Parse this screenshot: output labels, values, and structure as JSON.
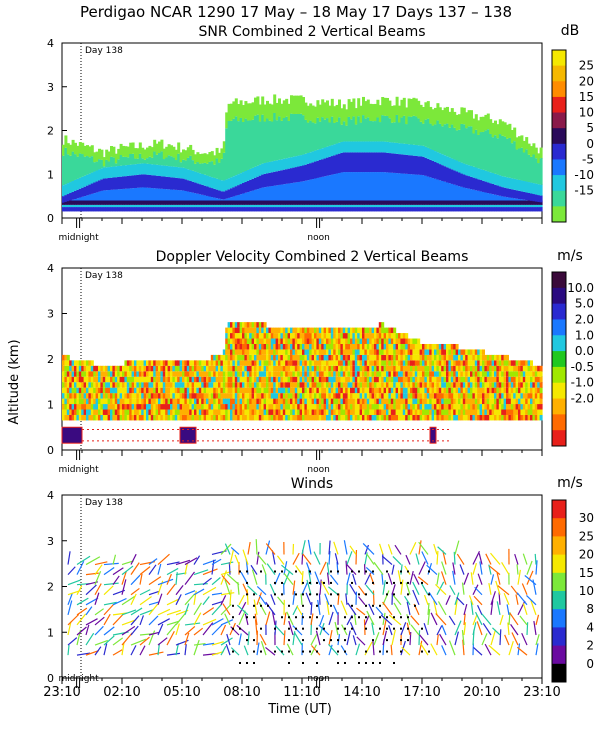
{
  "figure_title": "Perdigao NCAR 1290  17 May – 18 May 17 Days 137 – 138",
  "ylabel": "Altitude (km)",
  "xlabel": "Time (UT)",
  "day_marker": "Day 138",
  "midnight_label": "midnight",
  "noon_label": "noon",
  "chart_data": [
    {
      "type": "heatmap",
      "title": "SNR Combined 2 Vertical Beams",
      "units": "dB",
      "ylim": [
        0,
        4
      ],
      "yticks": [
        "0",
        "1",
        "2",
        "3",
        "4"
      ],
      "colorbar_labels": [
        "25",
        "20",
        "15",
        "10",
        "5",
        "0",
        "-5",
        "-10",
        "-15"
      ],
      "colors": [
        "#f5e800",
        "#f5b800",
        "#ff8c00",
        "#e8201a",
        "#8a1a4a",
        "#2a0a5a",
        "#2a2ad0",
        "#1a78ff",
        "#20c8e0",
        "#3ad89a",
        "#7ce83a"
      ],
      "series": [
        {
          "name": "band_top_km",
          "x": [
            0,
            2,
            3,
            5,
            7,
            8,
            8.2,
            10,
            12,
            14,
            16,
            18,
            20,
            22,
            24
          ],
          "values": [
            1.8,
            1.5,
            1.6,
            1.7,
            1.5,
            1.5,
            2.6,
            2.7,
            2.7,
            2.6,
            2.7,
            2.6,
            2.4,
            2.2,
            1.5
          ]
        },
        {
          "name": "strong_layer_km",
          "x": [
            0,
            2,
            4,
            6,
            8,
            10,
            12,
            14,
            16,
            18,
            20,
            22,
            24
          ],
          "values": [
            0.5,
            0.9,
            1.0,
            0.9,
            0.6,
            1.0,
            1.2,
            1.5,
            1.5,
            1.4,
            1.0,
            0.7,
            0.5
          ]
        }
      ]
    },
    {
      "type": "heatmap",
      "title": "Doppler Velocity Combined 2 Vertical Beams",
      "units": "m/s",
      "ylim": [
        0,
        4
      ],
      "yticks": [
        "0",
        "1",
        "2",
        "3",
        "4"
      ],
      "colorbar_labels": [
        "10.0",
        "5.0",
        "2.0",
        "1.0",
        "0.0",
        "-0.5",
        "-1.0",
        "-2.0"
      ],
      "colors": [
        "#3a0a3a",
        "#2a0a80",
        "#2a2ad0",
        "#1a78ff",
        "#20c8e0",
        "#20c820",
        "#a0e800",
        "#f5e800",
        "#ffb000",
        "#ff6a00",
        "#e8201a"
      ],
      "series": [
        {
          "name": "coverage_top_km",
          "x": [
            0,
            2,
            4,
            6,
            8,
            8.2,
            10,
            12,
            14,
            16,
            18,
            20,
            22,
            24
          ],
          "values": [
            2.0,
            1.8,
            1.9,
            1.9,
            2.0,
            2.8,
            2.7,
            2.6,
            2.6,
            2.7,
            2.3,
            2.2,
            2.0,
            1.8
          ]
        }
      ]
    },
    {
      "type": "scatter",
      "title": "Winds",
      "units": "m/s",
      "ylim": [
        0,
        4
      ],
      "yticks": [
        "0",
        "1",
        "2",
        "3",
        "4"
      ],
      "colorbar_labels": [
        "30",
        "25",
        "20",
        "15",
        "10",
        "8",
        "4",
        "2",
        "0"
      ],
      "colors": [
        "#e8201a",
        "#ff6a00",
        "#ffb000",
        "#f5e800",
        "#7ce83a",
        "#20c8a0",
        "#1a78ff",
        "#2a2ad0",
        "#6a0aa0",
        "#000000"
      ],
      "xticks": [
        "23:10",
        "02:10",
        "05:10",
        "08:10",
        "11:10",
        "14:10",
        "17:10",
        "20:10",
        "23:10"
      ],
      "series": [
        {
          "name": "wind_speed_profile_ms",
          "x": [
            0,
            2,
            4,
            6,
            8,
            10,
            12,
            14,
            16,
            18,
            20,
            22,
            24
          ],
          "values": [
            6,
            14,
            12,
            11,
            8,
            10,
            12,
            8,
            6,
            6,
            6,
            9,
            12
          ]
        }
      ]
    }
  ]
}
